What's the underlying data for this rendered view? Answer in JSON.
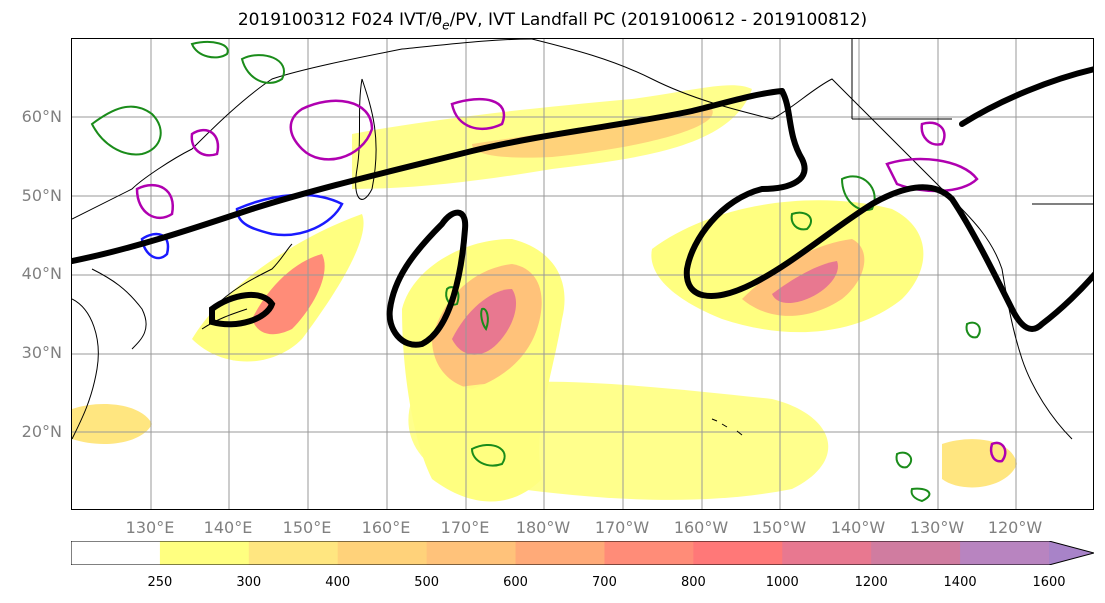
{
  "title": "2019100312 F024 IVT/θe/PV, IVT Landfall PC (2019100612 - 2019100812)",
  "title_parts": {
    "prefix": "2019100312 F024 IVT/θ",
    "sub": "e",
    "suffix": "/PV, IVT Landfall PC (2019100612 - 2019100812)"
  },
  "map": {
    "lon_range": [
      120,
      250
    ],
    "lat_range": [
      10,
      70
    ],
    "lat_labels": [
      "20°N",
      "30°N",
      "40°N",
      "50°N",
      "60°N"
    ],
    "lon_labels": [
      "130°E",
      "140°E",
      "150°E",
      "160°E",
      "170°E",
      "180°W",
      "170°W",
      "160°W",
      "150°W",
      "140°W",
      "130°W",
      "120°W"
    ],
    "gridlines": true,
    "colors": {
      "gridline": "#999999",
      "coast": "#000000",
      "pc_contour": "#000000",
      "theta_e": "#1a8c1a",
      "pv_blue": "#1a1aff",
      "pv_magenta": "#b000b0"
    }
  },
  "colorbar": {
    "levels": [
      "250",
      "300",
      "400",
      "500",
      "600",
      "700",
      "800",
      "1000",
      "1200",
      "1400",
      "1600"
    ],
    "colors": [
      "#ffffff",
      "#ffff80",
      "#ffe680",
      "#ffd27a",
      "#ffc27a",
      "#ffaa78",
      "#ff8c78",
      "#ff7878",
      "#e87890",
      "#d07ca0",
      "#b884c0",
      "#a883c8"
    ],
    "extend": "max"
  }
}
